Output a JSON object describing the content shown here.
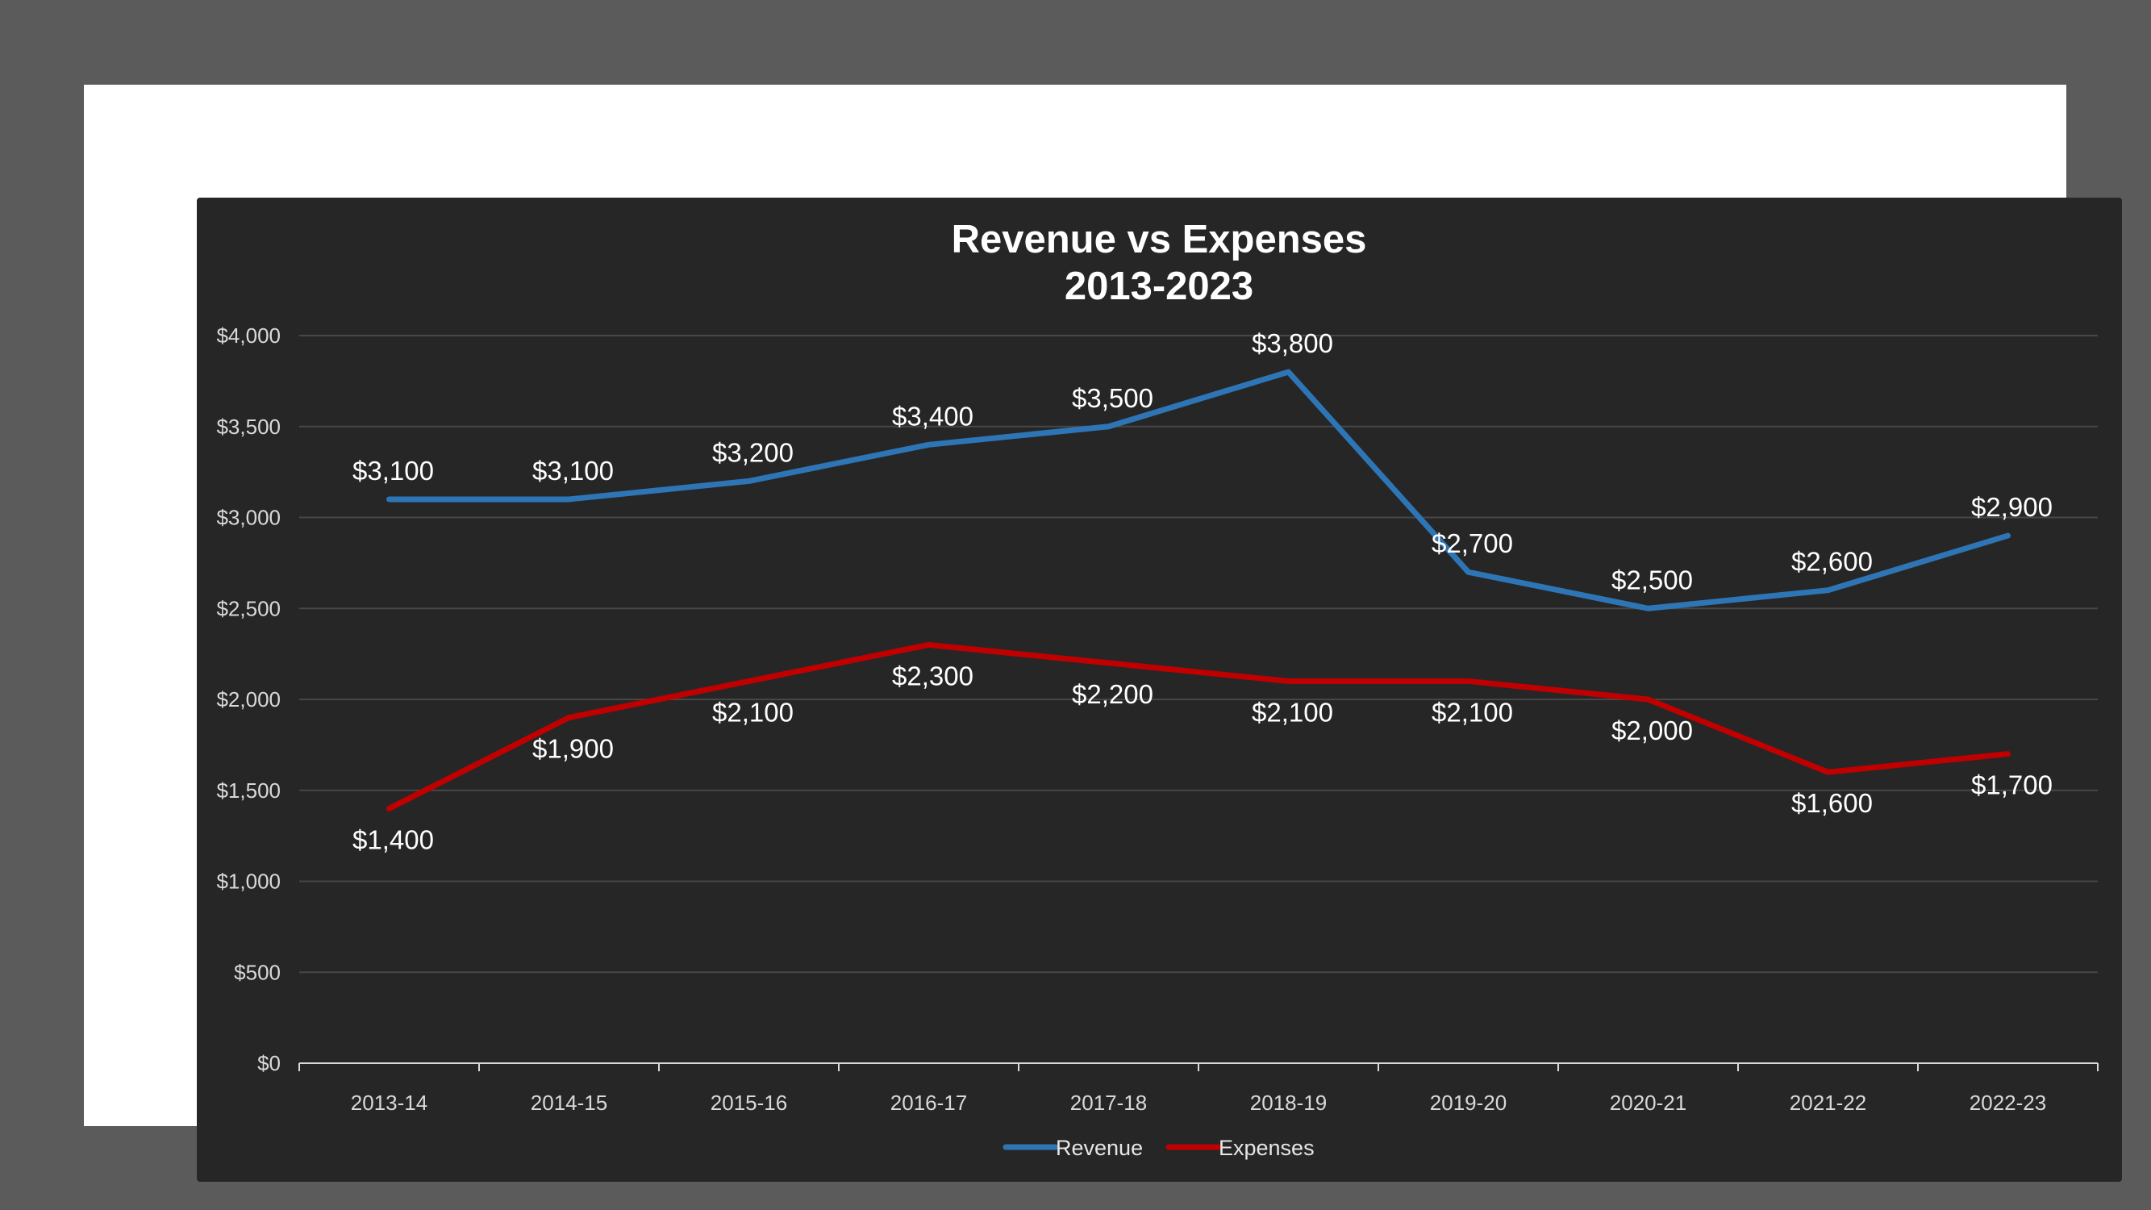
{
  "chart_data": {
    "type": "line",
    "title": "Revenue vs Expenses",
    "subtitle": "2013-2023",
    "categories": [
      "2013-14",
      "2014-15",
      "2015-16",
      "2016-17",
      "2017-18",
      "2018-19",
      "2019-20",
      "2020-21",
      "2021-22",
      "2022-23"
    ],
    "series": [
      {
        "name": "Revenue",
        "color": "#2e75b6",
        "values": [
          3100,
          3100,
          3200,
          3400,
          3500,
          3800,
          2700,
          2500,
          2600,
          2900
        ],
        "labels": [
          "$3,100",
          "$3,100",
          "$3,200",
          "$3,400",
          "$3,500",
          "$3,800",
          "$2,700",
          "$2,500",
          "$2,600",
          "$2,900"
        ]
      },
      {
        "name": "Expenses",
        "color": "#c00000",
        "values": [
          1400,
          1900,
          2100,
          2300,
          2200,
          2100,
          2100,
          2000,
          1600,
          1700
        ],
        "labels": [
          "$1,400",
          "$1,900",
          "$2,100",
          "$2,300",
          "$2,200",
          "$2,100",
          "$2,100",
          "$2,000",
          "$1,600",
          "$1,700"
        ]
      }
    ],
    "y_ticks": [
      "$0",
      "$500",
      "$1,000",
      "$1,500",
      "$2,000",
      "$2,500",
      "$3,000",
      "$3,500",
      "$4,000"
    ],
    "ylim": [
      0,
      4000
    ],
    "grid": true,
    "legend": "bottom",
    "background": "#262626"
  }
}
